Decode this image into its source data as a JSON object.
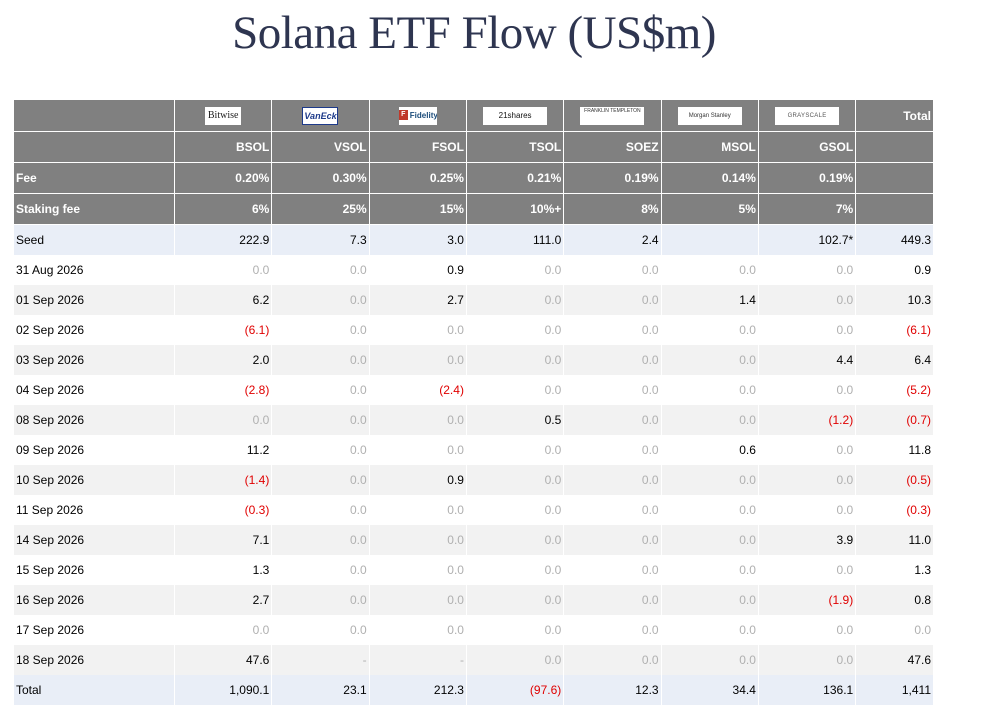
{
  "title": "Solana ETF Flow (US$m)",
  "colors": {
    "header_bg": "#808080",
    "band_bg": "#e9eef7",
    "alt_bg": "#f2f2f2",
    "negative": "#e00000",
    "zero": "#b0b0b0",
    "title": "#2e3550"
  },
  "issuers": [
    {
      "logo_text": "Bitwise",
      "logo_class": "bitwise",
      "ticker": "BSOL",
      "fee": "0.20%",
      "staking_fee": "6%"
    },
    {
      "logo_text": "VanEck",
      "logo_class": "vaneck",
      "ticker": "VSOL",
      "fee": "0.30%",
      "staking_fee": "25%"
    },
    {
      "logo_text": "Fidelity",
      "logo_class": "fidelity",
      "ticker": "FSOL",
      "fee": "0.25%",
      "staking_fee": "15%"
    },
    {
      "logo_text": "21shares",
      "logo_class": "shares21",
      "ticker": "TSOL",
      "fee": "0.21%",
      "staking_fee": "10%+"
    },
    {
      "logo_text": "FRANKLIN TEMPLETON",
      "logo_class": "franklin",
      "ticker": "SOEZ",
      "fee": "0.19%",
      "staking_fee": "8%"
    },
    {
      "logo_text": "Morgan Stanley",
      "logo_class": "morgan",
      "ticker": "MSOL",
      "fee": "0.14%",
      "staking_fee": "5%"
    },
    {
      "logo_text": "GRAYSCALE",
      "logo_class": "grayscale",
      "ticker": "GSOL",
      "fee": "0.19%",
      "staking_fee": "7%"
    }
  ],
  "header": {
    "total_label": "Total",
    "fee_label": "Fee",
    "staking_fee_label": "Staking fee"
  },
  "rows": [
    {
      "label": "Seed",
      "style": "band",
      "values": [
        "222.9",
        "7.3",
        "3.0",
        "111.0",
        "2.4",
        "",
        "102.7*"
      ],
      "total": "449.3"
    },
    {
      "label": "31 Aug 2026",
      "style": "plain",
      "values": [
        "0.0",
        "0.0",
        "0.9",
        "0.0",
        "0.0",
        "0.0",
        "0.0"
      ],
      "total": "0.9"
    },
    {
      "label": "01 Sep 2026",
      "style": "alt",
      "values": [
        "6.2",
        "0.0",
        "2.7",
        "0.0",
        "0.0",
        "1.4",
        "0.0"
      ],
      "total": "10.3"
    },
    {
      "label": "02 Sep 2026",
      "style": "plain",
      "values": [
        "(6.1)",
        "0.0",
        "0.0",
        "0.0",
        "0.0",
        "0.0",
        "0.0"
      ],
      "total": "(6.1)"
    },
    {
      "label": "03 Sep 2026",
      "style": "alt",
      "values": [
        "2.0",
        "0.0",
        "0.0",
        "0.0",
        "0.0",
        "0.0",
        "4.4"
      ],
      "total": "6.4"
    },
    {
      "label": "04 Sep 2026",
      "style": "plain",
      "values": [
        "(2.8)",
        "0.0",
        "(2.4)",
        "0.0",
        "0.0",
        "0.0",
        "0.0"
      ],
      "total": "(5.2)"
    },
    {
      "label": "08 Sep 2026",
      "style": "alt",
      "values": [
        "0.0",
        "0.0",
        "0.0",
        "0.5",
        "0.0",
        "0.0",
        "(1.2)"
      ],
      "total": "(0.7)"
    },
    {
      "label": "09 Sep 2026",
      "style": "plain",
      "values": [
        "11.2",
        "0.0",
        "0.0",
        "0.0",
        "0.0",
        "0.6",
        "0.0"
      ],
      "total": "11.8"
    },
    {
      "label": "10 Sep 2026",
      "style": "alt",
      "values": [
        "(1.4)",
        "0.0",
        "0.9",
        "0.0",
        "0.0",
        "0.0",
        "0.0"
      ],
      "total": "(0.5)"
    },
    {
      "label": "11 Sep 2026",
      "style": "plain",
      "values": [
        "(0.3)",
        "0.0",
        "0.0",
        "0.0",
        "0.0",
        "0.0",
        "0.0"
      ],
      "total": "(0.3)"
    },
    {
      "label": "14 Sep 2026",
      "style": "alt",
      "values": [
        "7.1",
        "0.0",
        "0.0",
        "0.0",
        "0.0",
        "0.0",
        "3.9"
      ],
      "total": "11.0"
    },
    {
      "label": "15 Sep 2026",
      "style": "plain",
      "values": [
        "1.3",
        "0.0",
        "0.0",
        "0.0",
        "0.0",
        "0.0",
        "0.0"
      ],
      "total": "1.3"
    },
    {
      "label": "16 Sep 2026",
      "style": "alt",
      "values": [
        "2.7",
        "0.0",
        "0.0",
        "0.0",
        "0.0",
        "0.0",
        "(1.9)"
      ],
      "total": "0.8"
    },
    {
      "label": "17 Sep 2026",
      "style": "plain",
      "values": [
        "0.0",
        "0.0",
        "0.0",
        "0.0",
        "0.0",
        "0.0",
        "0.0"
      ],
      "total": "0.0"
    },
    {
      "label": "18 Sep 2026",
      "style": "alt",
      "values": [
        "47.6",
        "-",
        "-",
        "0.0",
        "0.0",
        "0.0",
        "0.0"
      ],
      "total": "47.6"
    },
    {
      "label": "Total",
      "style": "band",
      "values": [
        "1,090.1",
        "23.1",
        "212.3",
        "(97.6)",
        "12.3",
        "34.4",
        "136.1"
      ],
      "total": "1,411"
    }
  ]
}
